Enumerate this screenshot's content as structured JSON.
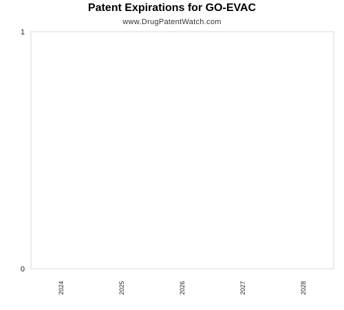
{
  "chart_data": {
    "type": "bar",
    "title": "Patent Expirations for GO-EVAC",
    "subtitle": "www.DrugPatentWatch.com",
    "categories": [
      "2024",
      "2025",
      "2026",
      "2027",
      "2028"
    ],
    "values": [
      0,
      0,
      0,
      0,
      0
    ],
    "xlabel": "",
    "ylabel": "",
    "ylim": [
      0,
      1
    ],
    "yticks": [
      "0",
      "1"
    ],
    "grid": false,
    "legend": "none",
    "colors": {
      "plot_border": "#d9d9d9",
      "text": "#222222"
    }
  }
}
